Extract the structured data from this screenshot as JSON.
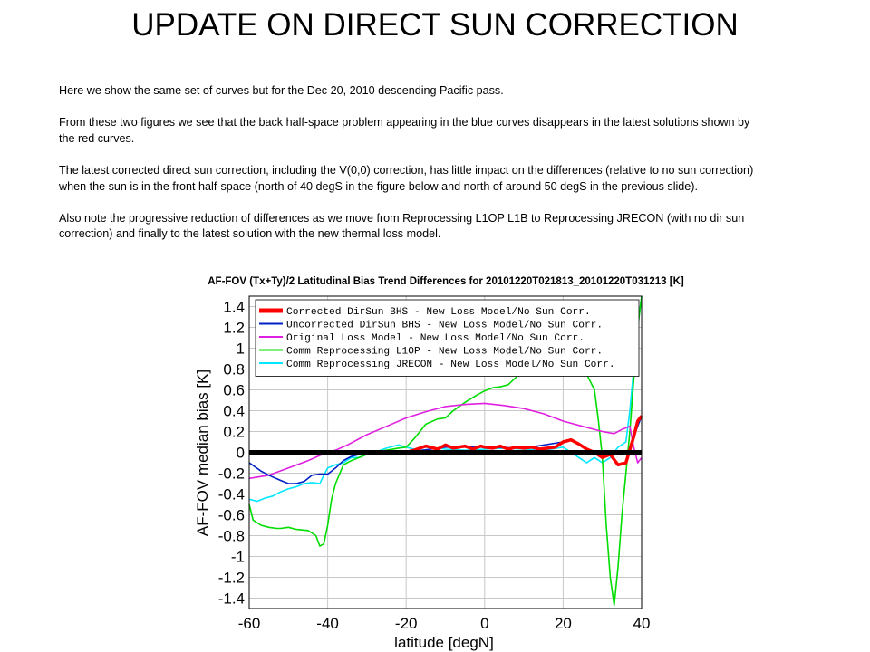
{
  "slide": {
    "title": "UPDATE ON DIRECT SUN CORRECTION",
    "paragraphs": [
      "Here we show the same set of curves but for the Dec 20, 2010 descending Pacific pass.",
      "From these two figures we see that the back half-space problem appearing in the blue curves disappears in the latest solutions shown by the red curves.",
      "The latest corrected direct sun correction, including the V(0,0) correction, has little impact on the differences (relative to no sun correction) when the sun is in the front half-space (north of 40 degS in the figure below and north of around 50 degS in the previous slide).",
      "Also note the progressive reduction of differences as we move from Reprocessing L1OP L1B to Reprocessing JRECON (with no dir sun correction) and finally to the latest solution with the new thermal loss model."
    ]
  },
  "chart_data": {
    "type": "line",
    "title": "AF-FOV (Tx+Ty)/2 Latitudinal Bias Trend Differences for 20101220T021813_20101220T031213 [K]",
    "xlabel": "latitude [degN]",
    "ylabel": "AF-FOV median bias [K]",
    "xlim": [
      -60,
      40
    ],
    "ylim": [
      -1.5,
      1.5
    ],
    "xticks": [
      -60,
      -40,
      -20,
      0,
      20,
      40
    ],
    "xtick_labels": [
      "-60",
      "-40",
      "-20",
      "0",
      "20",
      "40"
    ],
    "yticks": [
      1.4,
      1.2,
      1,
      0.8,
      0.6,
      0.4,
      0.2,
      0,
      -0.2,
      -0.4,
      -0.6,
      -0.8,
      -1,
      -1.2,
      -1.4
    ],
    "ytick_labels": [
      "1.4",
      "1.2",
      "1",
      "0.8",
      "0.6",
      "0.4",
      "0.2",
      "0",
      "-0.2",
      "-0.4",
      "-0.6",
      "-0.8",
      "-1",
      "-1.2",
      "-1.4"
    ],
    "grid": true,
    "legend_position": "top-left",
    "reference_line": {
      "y": 0,
      "color": "#000000"
    },
    "series": [
      {
        "name": "Corrected DirSun BHS - New Loss Model/No Sun Corr.",
        "color": "#ff0000",
        "x": [
          -60,
          -20,
          -18,
          -15,
          -12,
          -10,
          -8,
          -5,
          -3,
          -1,
          0,
          2,
          4,
          6,
          8,
          10,
          12,
          14,
          16,
          18,
          20,
          22,
          24,
          26,
          28,
          30,
          32,
          34,
          36,
          38,
          39,
          40
        ],
        "y": [
          0,
          0,
          0.02,
          0.06,
          0.03,
          0.07,
          0.04,
          0.06,
          0.03,
          0.06,
          0.05,
          0.04,
          0.06,
          0.03,
          0.05,
          0.04,
          0.05,
          0.03,
          0.04,
          0.05,
          0.1,
          0.12,
          0.08,
          0.03,
          0,
          -0.05,
          -0.02,
          -0.12,
          -0.1,
          0.15,
          0.3,
          0.35
        ]
      },
      {
        "name": "Uncorrected DirSun BHS - New Loss Model/No Sun Corr.",
        "color": "#0020c8",
        "x": [
          -60,
          -57,
          -55,
          -52,
          -50,
          -48,
          -46,
          -44,
          -42,
          -40,
          -38,
          -36,
          -34,
          -32,
          -30,
          -25,
          -20,
          -10,
          0,
          10,
          20,
          22,
          24,
          26,
          28,
          30,
          32,
          34,
          36,
          38,
          40
        ],
        "y": [
          -0.1,
          -0.18,
          -0.22,
          -0.27,
          -0.3,
          -0.3,
          -0.28,
          -0.22,
          -0.21,
          -0.21,
          -0.15,
          -0.08,
          -0.04,
          -0.02,
          0,
          0.01,
          0,
          0.05,
          0.05,
          0.04,
          0.1,
          0.12,
          0.08,
          0.03,
          0,
          -0.05,
          -0.02,
          -0.12,
          -0.1,
          0.15,
          0.35
        ]
      },
      {
        "name": "Original Loss Model - New Loss Model/No Sun Corr.",
        "color": "#e020e0",
        "x": [
          -60,
          -55,
          -50,
          -45,
          -42,
          -40,
          -38,
          -35,
          -30,
          -25,
          -20,
          -15,
          -10,
          -5,
          0,
          5,
          10,
          15,
          20,
          25,
          30,
          33,
          35,
          37,
          38,
          39,
          40
        ],
        "y": [
          -0.25,
          -0.22,
          -0.15,
          -0.08,
          -0.03,
          0,
          0.02,
          0.07,
          0.17,
          0.25,
          0.33,
          0.39,
          0.44,
          0.46,
          0.47,
          0.45,
          0.42,
          0.37,
          0.3,
          0.25,
          0.2,
          0.18,
          0.22,
          0.25,
          0.05,
          -0.1,
          -0.05
        ]
      },
      {
        "name": "Comm Reprocessing L1OP - New Loss Model/No Sun Corr.",
        "color": "#00dd00",
        "x": [
          -60,
          -59,
          -57,
          -55,
          -53,
          -52,
          -50,
          -48,
          -45,
          -43,
          -42,
          -41,
          -40,
          -39,
          -38,
          -36,
          -34,
          -32,
          -30,
          -28,
          -25,
          -22,
          -20,
          -18,
          -15,
          -12,
          -10,
          -8,
          -5,
          -2,
          0,
          2,
          4,
          6,
          8,
          10,
          12,
          14,
          16,
          18,
          20,
          22,
          24,
          26,
          28,
          29,
          30,
          31,
          32,
          33,
          34,
          35,
          36,
          37,
          38,
          39,
          40
        ],
        "y": [
          -0.5,
          -0.65,
          -0.7,
          -0.72,
          -0.73,
          -0.73,
          -0.72,
          -0.74,
          -0.75,
          -0.8,
          -0.9,
          -0.88,
          -0.7,
          -0.45,
          -0.3,
          -0.12,
          -0.08,
          -0.05,
          -0.02,
          0,
          0.02,
          0.04,
          0.05,
          0.13,
          0.27,
          0.32,
          0.33,
          0.4,
          0.48,
          0.55,
          0.59,
          0.62,
          0.63,
          0.65,
          0.72,
          0.8,
          0.82,
          0.83,
          0.8,
          0.79,
          0.78,
          0.8,
          0.8,
          0.75,
          0.6,
          0.3,
          -0.05,
          -0.7,
          -1.2,
          -1.47,
          -1.1,
          -0.6,
          -0.2,
          0.2,
          0.7,
          1.2,
          1.5
        ]
      },
      {
        "name": "Comm Reprocessing JRECON - New Loss Model/No Sun Corr.",
        "color": "#00e8ff",
        "x": [
          -60,
          -58,
          -56,
          -54,
          -52,
          -50,
          -48,
          -46,
          -44,
          -42,
          -41,
          -40,
          -38,
          -36,
          -34,
          -32,
          -30,
          -28,
          -25,
          -22,
          -20,
          -18,
          -15,
          -12,
          -10,
          -5,
          0,
          5,
          10,
          15,
          20,
          22,
          24,
          26,
          28,
          30,
          32,
          34,
          36,
          37,
          38,
          39,
          40
        ],
        "y": [
          -0.45,
          -0.47,
          -0.44,
          -0.42,
          -0.38,
          -0.35,
          -0.33,
          -0.3,
          -0.29,
          -0.3,
          -0.22,
          -0.15,
          -0.12,
          -0.1,
          -0.05,
          -0.05,
          -0.02,
          0,
          0.04,
          0.07,
          0.05,
          0.03,
          0.05,
          0.04,
          0.03,
          0.02,
          0.03,
          0.04,
          0.03,
          0.02,
          0.05,
          0,
          -0.05,
          -0.1,
          -0.05,
          -0.1,
          -0.05,
          0.05,
          0.1,
          0.4,
          0.8,
          1.2,
          1.5
        ]
      }
    ],
    "reference_width": 5
  }
}
